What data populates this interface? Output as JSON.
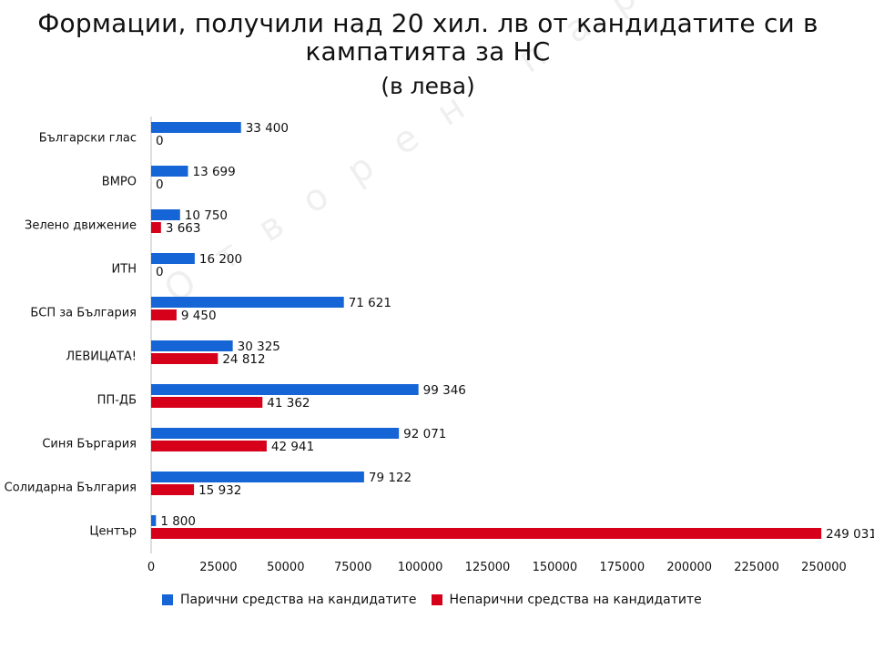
{
  "chart_data": {
    "type": "bar",
    "orientation": "horizontal",
    "title": "Формации, получили над 20 хил. лв от кандидатите си в кампатията за НС",
    "subtitle": "(в лева)",
    "categories": [
      "Български глас",
      "ВМРО",
      "Зелено движение",
      "ИТН",
      "БСП за България",
      "ЛЕВИЦАТА!",
      "ПП-ДБ",
      "Синя Бъргария",
      "Солидарна България",
      "Център"
    ],
    "series": [
      {
        "name": "Парични средства на кандидатите",
        "color": "#1565D6",
        "values": [
          33400,
          13699,
          10750,
          16200,
          71621,
          30325,
          99346,
          92071,
          79122,
          1800
        ],
        "labels": [
          "33 400",
          "13 699",
          "10 750",
          "16 200",
          "71 621",
          "30 325",
          "99 346",
          "92 071",
          "79 122",
          "1 800"
        ]
      },
      {
        "name": "Непарични средства на кандидатите",
        "color": "#D7001B",
        "values": [
          0,
          0,
          3663,
          0,
          9450,
          24812,
          41362,
          42941,
          15932,
          249031
        ],
        "labels": [
          "0",
          "0",
          "3 663",
          "0",
          "9 450",
          "24 812",
          "41 362",
          "42 941",
          "15 932",
          "249 031"
        ]
      }
    ],
    "xlim": [
      0,
      250000
    ],
    "xticks": [
      "0",
      "25000",
      "50000",
      "75000",
      "100000",
      "125000",
      "150000",
      "175000",
      "200000",
      "225000",
      "250000"
    ],
    "grid": false,
    "legend_position": "bottom"
  },
  "watermark": "Отворен парламент"
}
